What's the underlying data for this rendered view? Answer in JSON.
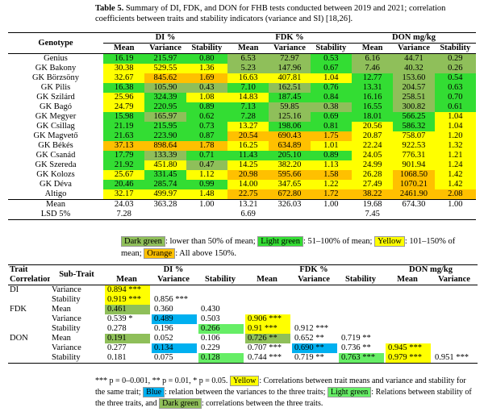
{
  "caption": {
    "label": "Table 5.",
    "text": "Summary of DI, FDK, and DON for FHB tests conducted between 2019 and 2021; correlation coefficients between traits and stability indicators (variance and SI) [18,26]."
  },
  "table1": {
    "group_header": [
      "Genotype",
      "DI %",
      "FDK %",
      "DON mg/kg"
    ],
    "sub_header": [
      "Mean",
      "Variance",
      "Stability",
      "Mean",
      "Variance",
      "Stability",
      "Mean",
      "Variance",
      "Stability"
    ],
    "rows": [
      {
        "name": "Genius",
        "cells": [
          "16.19",
          "215.97",
          "0.80",
          "6.53",
          "72.97",
          "0.53",
          "6.16",
          "44.71",
          "0.29"
        ],
        "colors": [
          "#33dd33",
          "#33dd33",
          "#33dd33",
          "#8fbf5a",
          "#8fbf5a",
          "#33dd33",
          "#8fbf5a",
          "#8fbf5a",
          "#8fbf5a"
        ]
      },
      {
        "name": "GK Bakony",
        "cells": [
          "30.38",
          "529.55",
          "1.36",
          "5.23",
          "147.96",
          "0.67",
          "7.46",
          "40.32",
          "0.26"
        ],
        "colors": [
          "#ffff00",
          "#ffff00",
          "#ffff00",
          "#8fbf5a",
          "#8fbf5a",
          "#33dd33",
          "#8fbf5a",
          "#8fbf5a",
          "#8fbf5a"
        ]
      },
      {
        "name": "GK Börzsöny",
        "cells": [
          "32.67",
          "845.62",
          "1.69",
          "16.63",
          "407.81",
          "1.04",
          "12.77",
          "153.60",
          "0.54"
        ],
        "colors": [
          "#ffff00",
          "#ffc000",
          "#ffc000",
          "#ffff00",
          "#ffff00",
          "#ffff00",
          "#33dd33",
          "#8fbf5a",
          "#33dd33"
        ]
      },
      {
        "name": "GK Pilis",
        "cells": [
          "16.38",
          "105.90",
          "0.43",
          "7.10",
          "162.51",
          "0.76",
          "13.31",
          "204.57",
          "0.63"
        ],
        "colors": [
          "#33dd33",
          "#8fbf5a",
          "#8fbf5a",
          "#33dd33",
          "#8fbf5a",
          "#33dd33",
          "#33dd33",
          "#8fbf5a",
          "#33dd33"
        ]
      },
      {
        "name": "GK Szilárd",
        "cells": [
          "25.96",
          "324.39",
          "1.08",
          "14.83",
          "187.45",
          "0.84",
          "16.16",
          "258.51",
          "0.70"
        ],
        "colors": [
          "#ffff00",
          "#33dd33",
          "#ffff00",
          "#ffff00",
          "#33dd33",
          "#33dd33",
          "#33dd33",
          "#8fbf5a",
          "#33dd33"
        ]
      },
      {
        "name": "GK Bagó",
        "cells": [
          "24.79",
          "220.95",
          "0.89",
          "7.13",
          "59.85",
          "0.38",
          "16.55",
          "300.82",
          "0.61"
        ],
        "colors": [
          "#ffff00",
          "#33dd33",
          "#33dd33",
          "#33dd33",
          "#8fbf5a",
          "#8fbf5a",
          "#33dd33",
          "#8fbf5a",
          "#33dd33"
        ]
      },
      {
        "name": "GK Megyer",
        "cells": [
          "15.98",
          "165.97",
          "0.62",
          "7.28",
          "125.16",
          "0.69",
          "18.01",
          "566.25",
          "1.04"
        ],
        "colors": [
          "#33dd33",
          "#8fbf5a",
          "#33dd33",
          "#33dd33",
          "#8fbf5a",
          "#33dd33",
          "#33dd33",
          "#33dd33",
          "#ffff00"
        ]
      },
      {
        "name": "GK Csillag",
        "cells": [
          "21.19",
          "215.95",
          "0.73",
          "13.27",
          "198.06",
          "0.81",
          "20.56",
          "586.32",
          "1.04"
        ],
        "colors": [
          "#33dd33",
          "#33dd33",
          "#33dd33",
          "#ffff00",
          "#33dd33",
          "#33dd33",
          "#ffff00",
          "#33dd33",
          "#ffff00"
        ]
      },
      {
        "name": "GK Magvető",
        "cells": [
          "21.63",
          "223.90",
          "0.87",
          "20.54",
          "690.43",
          "1.75",
          "20.87",
          "758.07",
          "1.20"
        ],
        "colors": [
          "#33dd33",
          "#33dd33",
          "#33dd33",
          "#ffc000",
          "#ffc000",
          "#ffc000",
          "#ffff00",
          "#ffff00",
          "#ffff00"
        ]
      },
      {
        "name": "GK Békés",
        "cells": [
          "37.13",
          "898.64",
          "1.78",
          "16.25",
          "634.89",
          "1.01",
          "22.24",
          "922.53",
          "1.32"
        ],
        "colors": [
          "#ffc000",
          "#ffc000",
          "#ffc000",
          "#ffff00",
          "#ffc000",
          "#ffff00",
          "#ffff00",
          "#ffff00",
          "#ffff00"
        ]
      },
      {
        "name": "GK Csanád",
        "cells": [
          "17.79",
          "133.39",
          "0.71",
          "11.43",
          "205.10",
          "0.89",
          "24.05",
          "776.31",
          "1.21"
        ],
        "colors": [
          "#33dd33",
          "#8fbf5a",
          "#33dd33",
          "#33dd33",
          "#33dd33",
          "#33dd33",
          "#ffff00",
          "#ffff00",
          "#ffff00"
        ]
      },
      {
        "name": "GK Szereda",
        "cells": [
          "21.92",
          "451.80",
          "0.47",
          "14.25",
          "382.20",
          "1.13",
          "24.99",
          "901.94",
          "1.24"
        ],
        "colors": [
          "#33dd33",
          "#ffff00",
          "#8fbf5a",
          "#ffff00",
          "#ffff00",
          "#ffff00",
          "#ffff00",
          "#ffff00",
          "#ffff00"
        ]
      },
      {
        "name": "GK Kolozs",
        "cells": [
          "25.67",
          "331.45",
          "1.12",
          "20.98",
          "595.66",
          "1.58",
          "26.28",
          "1068.50",
          "1.42"
        ],
        "colors": [
          "#ffff00",
          "#33dd33",
          "#ffff00",
          "#ffc000",
          "#ffc000",
          "#ffc000",
          "#ffff00",
          "#ffc000",
          "#ffff00"
        ]
      },
      {
        "name": "GK Déva",
        "cells": [
          "20.46",
          "285.74",
          "0.99",
          "14.00",
          "347.65",
          "1.22",
          "27.49",
          "1070.21",
          "1.42"
        ],
        "colors": [
          "#33dd33",
          "#33dd33",
          "#33dd33",
          "#ffff00",
          "#ffff00",
          "#ffff00",
          "#ffff00",
          "#ffc000",
          "#ffff00"
        ]
      },
      {
        "name": "Altigo",
        "cells": [
          "32.17",
          "499.97",
          "1.48",
          "22.75",
          "672.80",
          "1.72",
          "38.22",
          "2461.90",
          "2.08"
        ],
        "colors": [
          "#ffff00",
          "#ffff00",
          "#ffff00",
          "#ffc000",
          "#ffc000",
          "#ffc000",
          "#ffc000",
          "#ffc000",
          "#ffc000"
        ]
      }
    ],
    "mean": {
      "name": "Mean",
      "cells": [
        "24.03",
        "363.28",
        "1.00",
        "13.21",
        "326.03",
        "1.00",
        "19.68",
        "674.30",
        "1.00"
      ]
    },
    "lsd": {
      "name": "LSD 5%",
      "cells": [
        "7.28",
        null,
        null,
        "6.69",
        null,
        null,
        "7.45",
        null,
        null
      ]
    }
  },
  "legend": [
    {
      "label": "Dark green",
      "text": ": lower than 50% of mean;",
      "color": "#8fbf5a"
    },
    {
      "label": "Light green",
      "text": ": 51–100% of mean;",
      "color": "#33dd33"
    },
    {
      "label": "Yellow",
      "text": ": 101–150% of mean;",
      "color": "#ffff00"
    },
    {
      "label": "Orange",
      "text": ": All above 150%.",
      "color": "#ffc000"
    }
  ],
  "table2": {
    "header": [
      "Trait",
      "Sub-Trait",
      "DI %",
      "FDK %",
      "DON mg/kg"
    ],
    "corr_label": "Correlations",
    "sub_header": [
      "Mean",
      "Variance",
      "Stability",
      "Mean",
      "Variance",
      "Stability",
      "Mean",
      "Variance"
    ],
    "groups": [
      {
        "trait": "DI",
        "rows": [
          {
            "sub": "Variance",
            "cells": [
              "0.894 ***",
              null,
              null,
              null,
              null,
              null,
              null,
              null
            ],
            "colors": [
              "#ffff00",
              null,
              null,
              null,
              null,
              null,
              null,
              null
            ]
          },
          {
            "sub": "Stability",
            "cells": [
              "0.919 ***",
              "0.856 ***",
              null,
              null,
              null,
              null,
              null,
              null
            ],
            "colors": [
              "#ffff00",
              null,
              null,
              null,
              null,
              null,
              null,
              null
            ]
          }
        ]
      },
      {
        "trait": "FDK",
        "rows": [
          {
            "sub": "Mean",
            "cells": [
              "0.461",
              "0.360",
              "0.430",
              null,
              null,
              null,
              null,
              null
            ],
            "colors": [
              "#8fbf5a",
              null,
              null,
              null,
              null,
              null,
              null,
              null
            ]
          },
          {
            "sub": "Variance",
            "cells": [
              "0.539 *",
              "0.489",
              "0.503",
              "0.906 ***",
              null,
              null,
              null,
              null
            ],
            "colors": [
              null,
              "#00b0f0",
              null,
              "#ffff00",
              null,
              null,
              null,
              null
            ]
          },
          {
            "sub": "Stability",
            "cells": [
              "0.278",
              "0.196",
              "0.266",
              "0.91 ***",
              "0.912 ***",
              null,
              null,
              null
            ],
            "colors": [
              null,
              null,
              "#66ee66",
              "#ffff00",
              null,
              null,
              null,
              null
            ]
          }
        ]
      },
      {
        "trait": "DON",
        "rows": [
          {
            "sub": "Mean",
            "cells": [
              "0.191",
              "0.052",
              "0.106",
              "0.726 **",
              "0.652 **",
              "0.719 **",
              null,
              null
            ],
            "colors": [
              "#8fbf5a",
              null,
              null,
              "#8fbf5a",
              null,
              null,
              null,
              null
            ]
          },
          {
            "sub": "Variance",
            "cells": [
              "0.277",
              "0.134",
              "0.229",
              "0.707 ***",
              "0.690 **",
              "0.736 **",
              "0.945 ***",
              null
            ],
            "colors": [
              null,
              "#00b0f0",
              null,
              null,
              "#00b0f0",
              null,
              "#ffff00",
              null
            ]
          },
          {
            "sub": "Stability",
            "cells": [
              "0.181",
              "0.075",
              "0.128",
              "0.744 ***",
              "0.719 **",
              "0.763 ***",
              "0.979 ***",
              "0.951 ***"
            ],
            "colors": [
              null,
              null,
              "#66ee66",
              null,
              null,
              "#66ee66",
              "#ffff00",
              null
            ]
          }
        ]
      }
    ]
  },
  "footnote": {
    "stars": "*** p = 0–0.001, ** p = 0.01, * p = 0.05.",
    "notes": [
      {
        "label": "Yellow",
        "text": ": Correlations between trait means and variance and stability for the same trait;",
        "color": "#ffff00"
      },
      {
        "label": "Blue",
        "text": ": relation between the variances to the three traits;",
        "color": "#00b0f0"
      },
      {
        "label": "Light green",
        "text": ": Relations between stability of the three traits, and",
        "color": "#66ee66"
      },
      {
        "label": "Dark green",
        "text": ": correlations between the three traits.",
        "color": "#8fbf5a"
      }
    ]
  }
}
